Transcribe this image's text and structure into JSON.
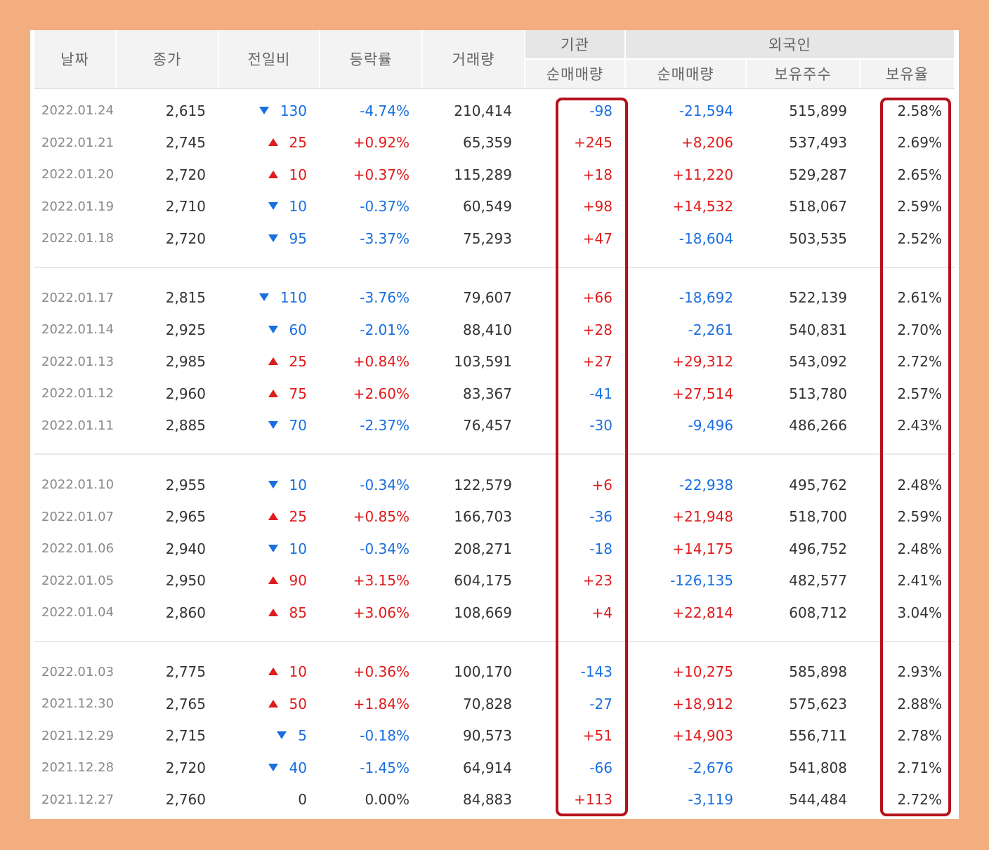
{
  "colors": {
    "up": "#e01b1b",
    "down": "#1a6fe0",
    "highlight": "#b5121b",
    "frame": "#f2ae7f"
  },
  "header": {
    "date": "날짜",
    "close": "종가",
    "change": "전일비",
    "rate": "등락률",
    "volume": "거래량",
    "inst_group": "기관",
    "inst_net": "순매매량",
    "foreign_group": "외국인",
    "foreign_net": "순매매량",
    "foreign_shares": "보유주수",
    "foreign_ratio": "보유율"
  },
  "groups": [
    [
      {
        "date": "2022.01.24",
        "close": "2,615",
        "dir": "down",
        "chg": "130",
        "rate": "-4.74%",
        "vol": "210,414",
        "inst": "-98",
        "fnet": "-21,594",
        "fshares": "515,899",
        "fratio": "2.58%"
      },
      {
        "date": "2022.01.21",
        "close": "2,745",
        "dir": "up",
        "chg": "25",
        "rate": "+0.92%",
        "vol": "65,359",
        "inst": "+245",
        "fnet": "+8,206",
        "fshares": "537,493",
        "fratio": "2.69%"
      },
      {
        "date": "2022.01.20",
        "close": "2,720",
        "dir": "up",
        "chg": "10",
        "rate": "+0.37%",
        "vol": "115,289",
        "inst": "+18",
        "fnet": "+11,220",
        "fshares": "529,287",
        "fratio": "2.65%"
      },
      {
        "date": "2022.01.19",
        "close": "2,710",
        "dir": "down",
        "chg": "10",
        "rate": "-0.37%",
        "vol": "60,549",
        "inst": "+98",
        "fnet": "+14,532",
        "fshares": "518,067",
        "fratio": "2.59%"
      },
      {
        "date": "2022.01.18",
        "close": "2,720",
        "dir": "down",
        "chg": "95",
        "rate": "-3.37%",
        "vol": "75,293",
        "inst": "+47",
        "fnet": "-18,604",
        "fshares": "503,535",
        "fratio": "2.52%"
      }
    ],
    [
      {
        "date": "2022.01.17",
        "close": "2,815",
        "dir": "down",
        "chg": "110",
        "rate": "-3.76%",
        "vol": "79,607",
        "inst": "+66",
        "fnet": "-18,692",
        "fshares": "522,139",
        "fratio": "2.61%"
      },
      {
        "date": "2022.01.14",
        "close": "2,925",
        "dir": "down",
        "chg": "60",
        "rate": "-2.01%",
        "vol": "88,410",
        "inst": "+28",
        "fnet": "-2,261",
        "fshares": "540,831",
        "fratio": "2.70%"
      },
      {
        "date": "2022.01.13",
        "close": "2,985",
        "dir": "up",
        "chg": "25",
        "rate": "+0.84%",
        "vol": "103,591",
        "inst": "+27",
        "fnet": "+29,312",
        "fshares": "543,092",
        "fratio": "2.72%"
      },
      {
        "date": "2022.01.12",
        "close": "2,960",
        "dir": "up",
        "chg": "75",
        "rate": "+2.60%",
        "vol": "83,367",
        "inst": "-41",
        "fnet": "+27,514",
        "fshares": "513,780",
        "fratio": "2.57%"
      },
      {
        "date": "2022.01.11",
        "close": "2,885",
        "dir": "down",
        "chg": "70",
        "rate": "-2.37%",
        "vol": "76,457",
        "inst": "-30",
        "fnet": "-9,496",
        "fshares": "486,266",
        "fratio": "2.43%"
      }
    ],
    [
      {
        "date": "2022.01.10",
        "close": "2,955",
        "dir": "down",
        "chg": "10",
        "rate": "-0.34%",
        "vol": "122,579",
        "inst": "+6",
        "fnet": "-22,938",
        "fshares": "495,762",
        "fratio": "2.48%"
      },
      {
        "date": "2022.01.07",
        "close": "2,965",
        "dir": "up",
        "chg": "25",
        "rate": "+0.85%",
        "vol": "166,703",
        "inst": "-36",
        "fnet": "+21,948",
        "fshares": "518,700",
        "fratio": "2.59%"
      },
      {
        "date": "2022.01.06",
        "close": "2,940",
        "dir": "down",
        "chg": "10",
        "rate": "-0.34%",
        "vol": "208,271",
        "inst": "-18",
        "fnet": "+14,175",
        "fshares": "496,752",
        "fratio": "2.48%"
      },
      {
        "date": "2022.01.05",
        "close": "2,950",
        "dir": "up",
        "chg": "90",
        "rate": "+3.15%",
        "vol": "604,175",
        "inst": "+23",
        "fnet": "-126,135",
        "fshares": "482,577",
        "fratio": "2.41%"
      },
      {
        "date": "2022.01.04",
        "close": "2,860",
        "dir": "up",
        "chg": "85",
        "rate": "+3.06%",
        "vol": "108,669",
        "inst": "+4",
        "fnet": "+22,814",
        "fshares": "608,712",
        "fratio": "3.04%"
      }
    ],
    [
      {
        "date": "2022.01.03",
        "close": "2,775",
        "dir": "up",
        "chg": "10",
        "rate": "+0.36%",
        "vol": "100,170",
        "inst": "-143",
        "fnet": "+10,275",
        "fshares": "585,898",
        "fratio": "2.93%"
      },
      {
        "date": "2021.12.30",
        "close": "2,765",
        "dir": "up",
        "chg": "50",
        "rate": "+1.84%",
        "vol": "70,828",
        "inst": "-27",
        "fnet": "+18,912",
        "fshares": "575,623",
        "fratio": "2.88%"
      },
      {
        "date": "2021.12.29",
        "close": "2,715",
        "dir": "down",
        "chg": "5",
        "rate": "-0.18%",
        "vol": "90,573",
        "inst": "+51",
        "fnet": "+14,903",
        "fshares": "556,711",
        "fratio": "2.78%"
      },
      {
        "date": "2021.12.28",
        "close": "2,720",
        "dir": "down",
        "chg": "40",
        "rate": "-1.45%",
        "vol": "64,914",
        "inst": "-66",
        "fnet": "-2,676",
        "fshares": "541,808",
        "fratio": "2.71%"
      },
      {
        "date": "2021.12.27",
        "close": "2,760",
        "dir": "flat",
        "chg": "0",
        "rate": "0.00%",
        "vol": "84,883",
        "inst": "+113",
        "fnet": "-3,119",
        "fshares": "544,484",
        "fratio": "2.72%"
      }
    ]
  ]
}
